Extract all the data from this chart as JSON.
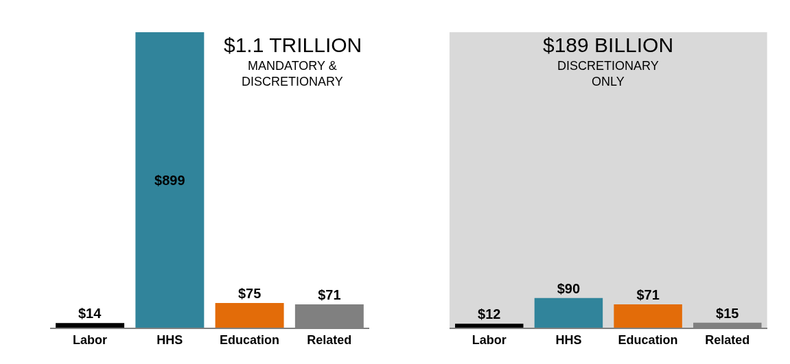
{
  "chart_data": [
    {
      "type": "bar",
      "title": "$1.1 TRILLION",
      "subtitle": "MANDATORY &\nDISCRETIONARY",
      "categories": [
        "Labor",
        "HHS",
        "Education",
        "Related"
      ],
      "values": [
        14,
        899,
        75,
        71
      ],
      "colors": [
        "#000000",
        "#31849b",
        "#e36c09",
        "#808080"
      ],
      "value_labels": [
        "$14",
        "$899",
        "$75",
        "$71"
      ],
      "ylim": [
        0,
        899
      ],
      "tick_labels": "x"
    },
    {
      "type": "bar",
      "title": "$189 BILLION",
      "subtitle": "DISCRETIONARY\nONLY",
      "categories": [
        "Labor",
        "HHS",
        "Education",
        "Related"
      ],
      "values": [
        12,
        90,
        71,
        15
      ],
      "colors": [
        "#000000",
        "#31849b",
        "#e36c09",
        "#808080"
      ],
      "value_labels": [
        "$12",
        "$90",
        "$71",
        "$15"
      ],
      "ylim": [
        0,
        899
      ],
      "tick_labels": "x",
      "bands": [
        {
          "axis": "y",
          "from": 0,
          "to": 899,
          "color": "#d9d9d9"
        }
      ]
    }
  ]
}
